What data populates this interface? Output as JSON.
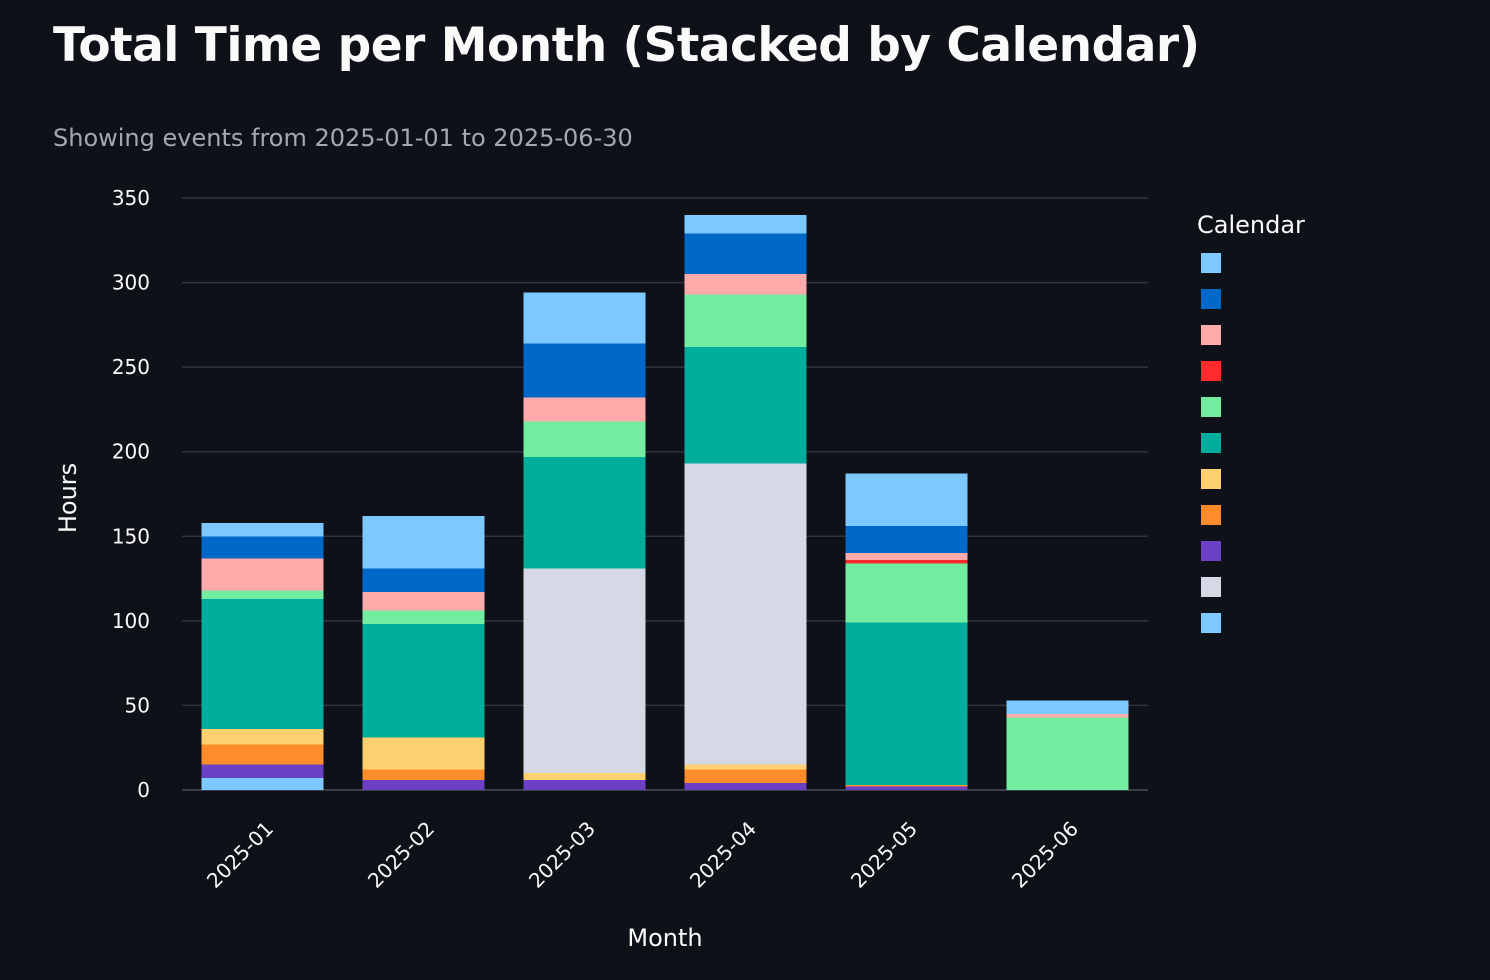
{
  "header": {
    "title": "Total Time per Month (Stacked by Calendar)",
    "subtitle": "Showing events from 2025-01-01 to 2025-06-30"
  },
  "chart_data": {
    "type": "bar",
    "stacked": true,
    "xlabel": "Month",
    "ylabel": "Hours",
    "ylim": [
      0,
      350
    ],
    "yticks": [
      0,
      50,
      100,
      150,
      200,
      250,
      300,
      350
    ],
    "grid": true,
    "legend_title": "Calendar",
    "legend_placement": "right",
    "categories": [
      "2025-01",
      "2025-02",
      "2025-03",
      "2025-04",
      "2025-05",
      "2025-06"
    ],
    "series": [
      {
        "color": "#7dc8ff",
        "values": [
          7,
          0,
          0,
          0,
          0,
          0
        ]
      },
      {
        "color": "#6b40c4",
        "values": [
          8,
          6,
          6,
          4,
          2,
          0
        ]
      },
      {
        "color": "#ff8c2a",
        "values": [
          12,
          6,
          0,
          8,
          1,
          0
        ]
      },
      {
        "color": "#ffd070",
        "values": [
          9,
          19,
          4,
          3,
          0,
          0
        ]
      },
      {
        "color": "#d4d9e5",
        "values": [
          0,
          0,
          121,
          178,
          0,
          0
        ]
      },
      {
        "color": "#00ad9c",
        "values": [
          77,
          67,
          66,
          69,
          96,
          0
        ]
      },
      {
        "color": "#72ed9f",
        "values": [
          5,
          8,
          21,
          31,
          35,
          43
        ]
      },
      {
        "color": "#ff2b2b",
        "values": [
          0,
          0,
          0,
          0,
          2,
          0
        ]
      },
      {
        "color": "#ffabab",
        "values": [
          19,
          11,
          14,
          12,
          4,
          2
        ]
      },
      {
        "color": "#0068c9",
        "values": [
          13,
          14,
          32,
          24,
          16,
          0
        ]
      },
      {
        "color": "#7dc8ff",
        "values": [
          8,
          31,
          30,
          11,
          31,
          8
        ]
      }
    ],
    "legend_colors": [
      "#7dc8ff",
      "#0068c9",
      "#ffabab",
      "#ff2b2b",
      "#72ed9f",
      "#00ad9c",
      "#ffd070",
      "#ff8c2a",
      "#6b40c4",
      "#d4d9e5",
      "#7dc8ff"
    ]
  }
}
